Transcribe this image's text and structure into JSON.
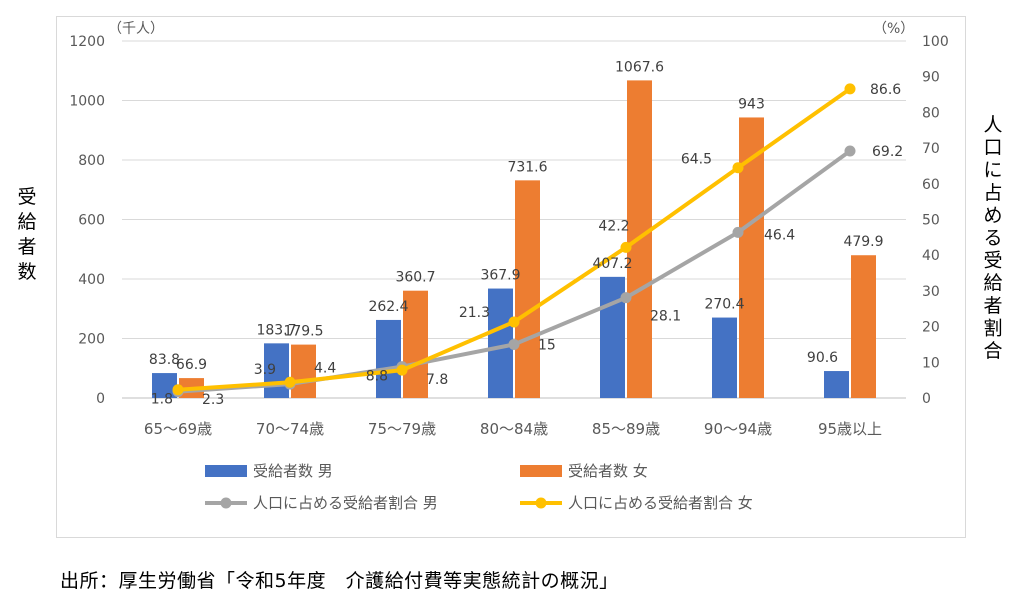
{
  "chart_data": {
    "type": "bar",
    "categories": [
      "65～69歳",
      "70～74歳",
      "75～79歳",
      "80～84歳",
      "85～89歳",
      "90～94歳",
      "95歳以上"
    ],
    "series": [
      {
        "name": "受給者数 男",
        "kind": "bar",
        "axis": "left",
        "color": "#4472c4",
        "values": [
          83.8,
          183.7,
          262.4,
          367.9,
          407.2,
          270.4,
          90.6
        ]
      },
      {
        "name": "受給者数 女",
        "kind": "bar",
        "axis": "left",
        "color": "#ed7d31",
        "values": [
          66.9,
          179.5,
          360.7,
          731.6,
          1067.6,
          943,
          479.9
        ]
      },
      {
        "name": "人口に占める受給者割合 男",
        "kind": "line",
        "axis": "right",
        "color": "#a5a5a5",
        "values": [
          1.8,
          3.9,
          8.8,
          15,
          28.1,
          46.4,
          69.2
        ]
      },
      {
        "name": "人口に占める受給者割合 女",
        "kind": "line",
        "axis": "right",
        "color": "#ffc000",
        "values": [
          2.3,
          4.4,
          7.8,
          21.3,
          42.2,
          64.5,
          86.6
        ]
      }
    ],
    "left_axis": {
      "label": "受給者数",
      "unit": "（千人）",
      "ylim": [
        0,
        1200
      ],
      "ticks": [
        "0",
        "200",
        "400",
        "600",
        "800",
        "1000",
        "1200"
      ]
    },
    "right_axis": {
      "label": "人口に占める受給者割合",
      "unit": "（%）",
      "ylim": [
        0,
        100
      ],
      "ticks": [
        "0",
        "10",
        "20",
        "30",
        "40",
        "50",
        "60",
        "70",
        "80",
        "90",
        "100"
      ]
    },
    "gridlines": true,
    "legend_position": "bottom"
  },
  "source_note": "出所：厚生労働省「令和5年度　介護給付費等実態統計の概況」"
}
